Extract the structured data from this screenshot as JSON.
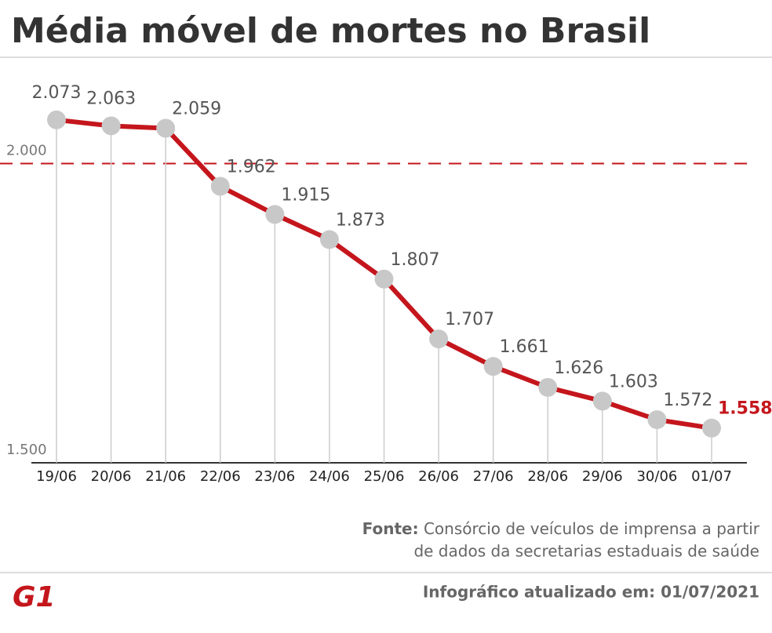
{
  "chart_data": {
    "type": "line",
    "title": "Média móvel de mortes no Brasil",
    "categories": [
      "19/06",
      "20/06",
      "21/06",
      "22/06",
      "23/06",
      "24/06",
      "25/06",
      "26/06",
      "27/06",
      "28/06",
      "29/06",
      "30/06",
      "01/07"
    ],
    "series": [
      {
        "color": "#c4161c",
        "values": [
          2073,
          2063,
          2059,
          1962,
          1915,
          1873,
          1807,
          1707,
          1661,
          1626,
          1603,
          1572,
          1558
        ],
        "value_labels": [
          "2.073",
          "2.063",
          "2.059",
          "1.962",
          "1.915",
          "1.873",
          "1.807",
          "1.707",
          "1.661",
          "1.626",
          "1.603",
          "1.572",
          "1.558"
        ]
      }
    ],
    "marker_color": "#c8c8c8",
    "highlight_last": true,
    "ylim": [
      1500,
      2175
    ],
    "yticks": [
      {
        "value": 1500,
        "label": "1.500"
      },
      {
        "value": 2000,
        "label": "2.000"
      }
    ],
    "source_label": "Fonte:",
    "source_lines": [
      "Consórcio de veículos de imprensa a partir",
      "de dados da secretarias estaduais de saúde"
    ],
    "updated": "Infográfico atualizado em: 01/07/2021",
    "logo": "G1"
  }
}
